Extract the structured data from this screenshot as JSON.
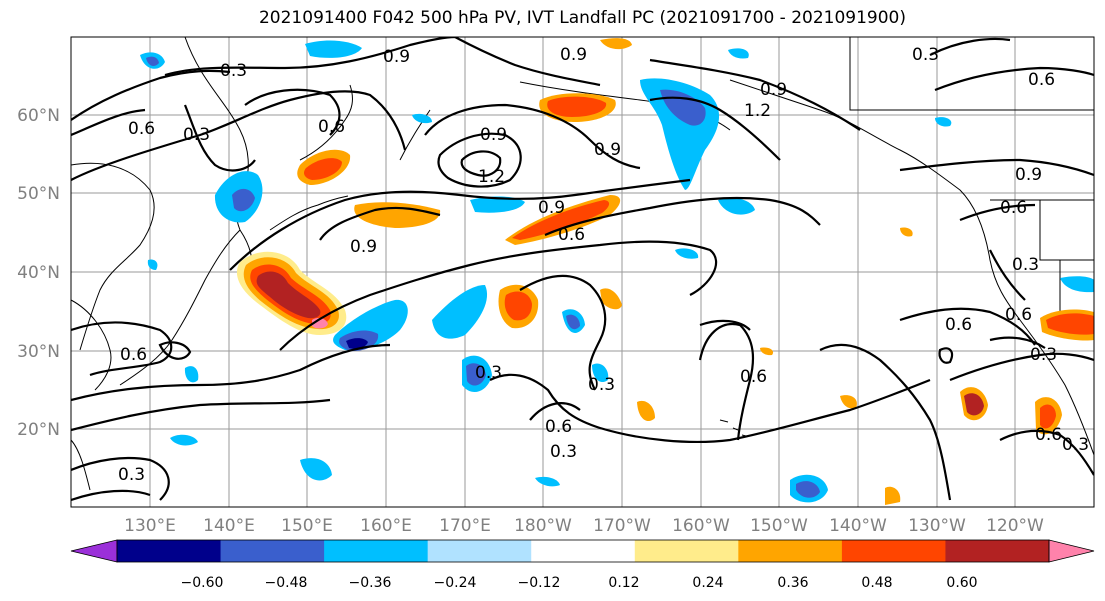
{
  "title": "2021091400 F042 500 hPa PV, IVT Landfall PC (2021091700 - 2021091900)",
  "lat_labels": [
    "60°N",
    "50°N",
    "40°N",
    "30°N",
    "20°N"
  ],
  "lon_labels": [
    "130°E",
    "140°E",
    "150°E",
    "160°E",
    "170°E",
    "180°W",
    "170°W",
    "160°W",
    "150°W",
    "140°W",
    "130°W",
    "120°W"
  ],
  "colorbar": {
    "colors": [
      "#9b30d9",
      "#00008b",
      "#3a5fcd",
      "#00bfff",
      "#b0e2ff",
      "#ffffff",
      "#ffec8b",
      "#ffa500",
      "#ff4500",
      "#b22222",
      "#ff82ab"
    ],
    "tick_labels": [
      "−0.60",
      "−0.48",
      "−0.36",
      "−0.24",
      "−0.12",
      "0.12",
      "0.24",
      "0.36",
      "0.48",
      "0.60"
    ]
  },
  "contour_labels": [
    "0.3",
    "0.6",
    "0.9",
    "1.2"
  ]
}
